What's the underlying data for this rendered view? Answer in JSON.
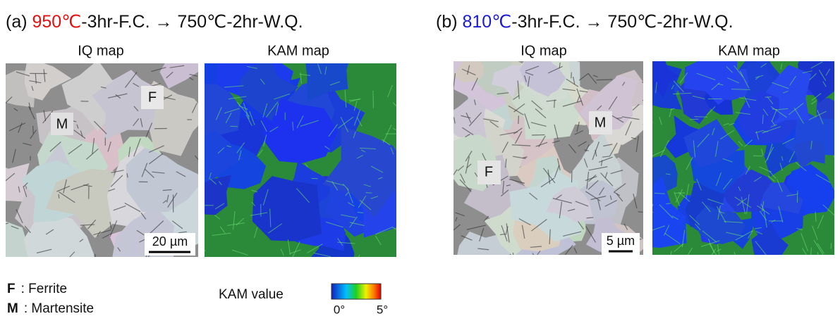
{
  "panels": [
    {
      "title": {
        "prefix": "(a) ",
        "temperature": "950℃",
        "suffix": "-3hr-F.C. → 750℃-2hr-W.Q."
      },
      "temperature_color": "#e31010",
      "maps": [
        "IQ map",
        "KAM map"
      ],
      "phase_labels": [
        "F",
        "M"
      ],
      "scale_bar": "20 µm"
    },
    {
      "title": {
        "prefix": "(b) ",
        "temperature": "810℃",
        "suffix": "-3hr-F.C. → 750℃-2hr-W.Q."
      },
      "temperature_color": "#1a1ad0",
      "maps": [
        "IQ map",
        "KAM map"
      ],
      "phase_labels": [
        "F",
        "M"
      ],
      "scale_bar": "5 µm"
    }
  ],
  "legend": {
    "phases": [
      {
        "symbol": "F",
        "text": ": Ferrite"
      },
      {
        "symbol": "M",
        "text": ": Martensite"
      }
    ],
    "kam": {
      "label": "KAM value",
      "min": "0°",
      "max": "5°"
    }
  }
}
